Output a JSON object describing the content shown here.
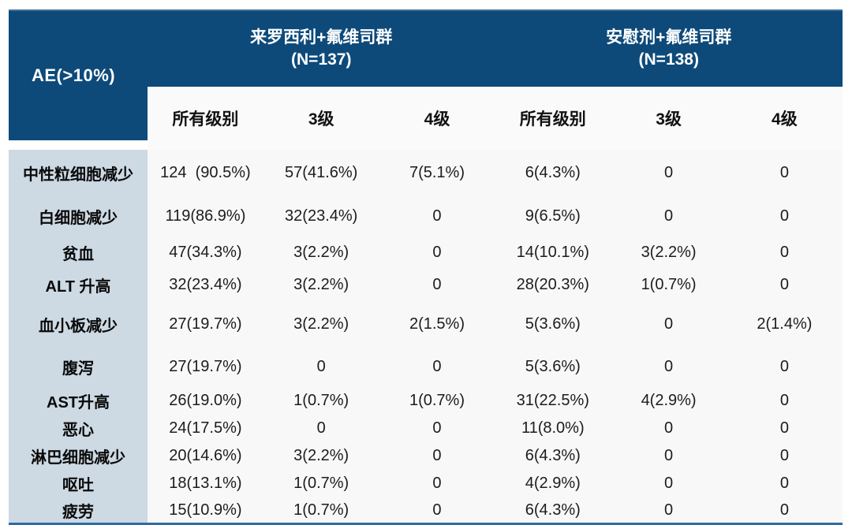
{
  "colors": {
    "header_bg": "#0d4a7a",
    "label_column_bg": "#cdd9e3",
    "body_bg": "#f8f8f8",
    "bottom_rule": "#2e6ca3",
    "header_text": "#ffffff"
  },
  "table": {
    "ae_header": "AE(>10%)",
    "groups": [
      {
        "title": "来罗西利+氟维司群",
        "n": "(N=137)"
      },
      {
        "title": "安慰剂+氟维司群",
        "n": "(N=138)"
      }
    ],
    "sub_headers": [
      "所有级别",
      "3级",
      "4级",
      "所有级别",
      "3级",
      "4级"
    ],
    "rows": [
      {
        "label": "中性粒细胞减少",
        "values": [
          "124  (90.5%)",
          "57(41.6%)",
          "7(5.1%)",
          "6(4.3%)",
          "0",
          "0"
        ]
      },
      {
        "label": "白细胞减少",
        "values": [
          "119(86.9%)",
          "32(23.4%)",
          "0",
          "9(6.5%)",
          "0",
          "0"
        ]
      },
      {
        "label": "贫血",
        "values": [
          "47(34.3%)",
          "3(2.2%)",
          "0",
          "14(10.1%)",
          "3(2.2%)",
          "0"
        ]
      },
      {
        "label": "ALT 升高",
        "values": [
          "32(23.4%)",
          "3(2.2%)",
          "0",
          "28(20.3%)",
          "1(0.7%)",
          "0"
        ]
      },
      {
        "label": "血小板减少",
        "values": [
          "27(19.7%)",
          "3(2.2%)",
          "2(1.5%)",
          "5(3.6%)",
          "0",
          "2(1.4%)"
        ]
      },
      {
        "label": "腹泻",
        "values": [
          "27(19.7%)",
          "0",
          "0",
          "5(3.6%)",
          "0",
          "0"
        ]
      },
      {
        "label": "AST升高",
        "values": [
          "26(19.0%)",
          "1(0.7%)",
          "1(0.7%)",
          "31(22.5%)",
          "4(2.9%)",
          "0"
        ]
      },
      {
        "label": "恶心",
        "values": [
          "24(17.5%)",
          "0",
          "0",
          "11(8.0%)",
          "0",
          "0"
        ]
      },
      {
        "label": "淋巴细胞减少",
        "values": [
          "20(14.6%)",
          "3(2.2%)",
          "0",
          "6(4.3%)",
          "0",
          "0"
        ]
      },
      {
        "label": "呕吐",
        "values": [
          "18(13.1%)",
          "1(0.7%)",
          "0",
          "4(2.9%)",
          "0",
          "0"
        ]
      },
      {
        "label": "疲劳",
        "values": [
          "15(10.9%)",
          "1(0.7%)",
          "0",
          "6(4.3%)",
          "0",
          "0"
        ]
      }
    ]
  }
}
